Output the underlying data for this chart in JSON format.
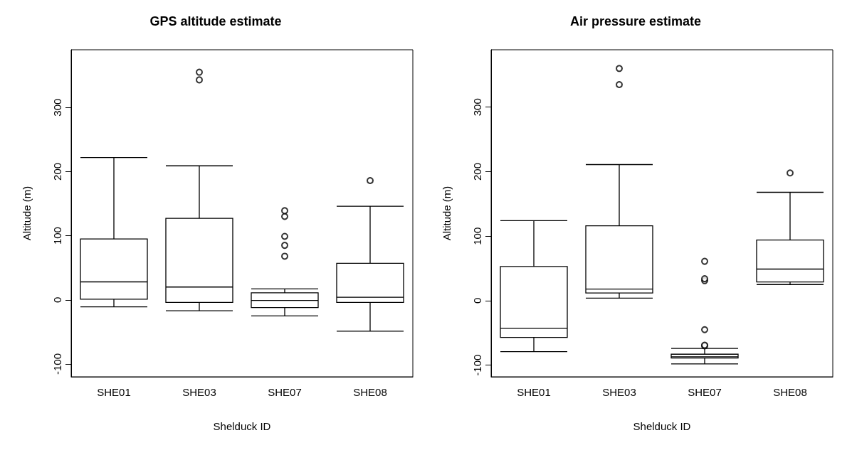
{
  "chart_data": [
    {
      "type": "box",
      "title": "GPS altitude estimate",
      "xlabel": "Shelduck ID",
      "ylabel": "Altitude (m)",
      "categories": [
        "SHE01",
        "SHE03",
        "SHE07",
        "SHE08"
      ],
      "ylim": [
        -120,
        390
      ],
      "yticks": [
        -100,
        0,
        100,
        200,
        300
      ],
      "boxes": [
        {
          "low": -11,
          "q1": 1,
          "median": 28,
          "q3": 95,
          "high": 222
        },
        {
          "low": -17,
          "q1": -4,
          "median": 20,
          "q3": 127,
          "high": 209,
          "outliers": [
            343,
            355
          ]
        },
        {
          "low": -25,
          "q1": -12,
          "median": -1,
          "q3": 11,
          "high": 17,
          "outliers": [
            68,
            85,
            99,
            130,
            139
          ]
        },
        {
          "low": -49,
          "q1": -4,
          "median": 4,
          "q3": 57,
          "high": 146,
          "outliers": [
            186
          ]
        }
      ]
    },
    {
      "type": "box",
      "title": "Air pressure estimate",
      "xlabel": "Shelduck ID",
      "ylabel": "Altitude (m)",
      "categories": [
        "SHE01",
        "SHE03",
        "SHE07",
        "SHE08"
      ],
      "ylim": [
        -118,
        389
      ],
      "yticks": [
        -100,
        0,
        100,
        200,
        300
      ],
      "boxes": [
        {
          "low": -79,
          "q1": -57,
          "median": -43,
          "q3": 53,
          "high": 124
        },
        {
          "low": 4,
          "q1": 12,
          "median": 18,
          "q3": 116,
          "high": 211,
          "outliers": [
            335,
            360
          ]
        },
        {
          "low": -98,
          "q1": -89,
          "median": -87,
          "q3": -83,
          "high": -74,
          "outliers": [
            -70,
            -69,
            -45,
            31,
            34,
            61
          ]
        },
        {
          "low": 25,
          "q1": 29,
          "median": 49,
          "q3": 94,
          "high": 168,
          "outliers": [
            198
          ]
        }
      ]
    }
  ]
}
